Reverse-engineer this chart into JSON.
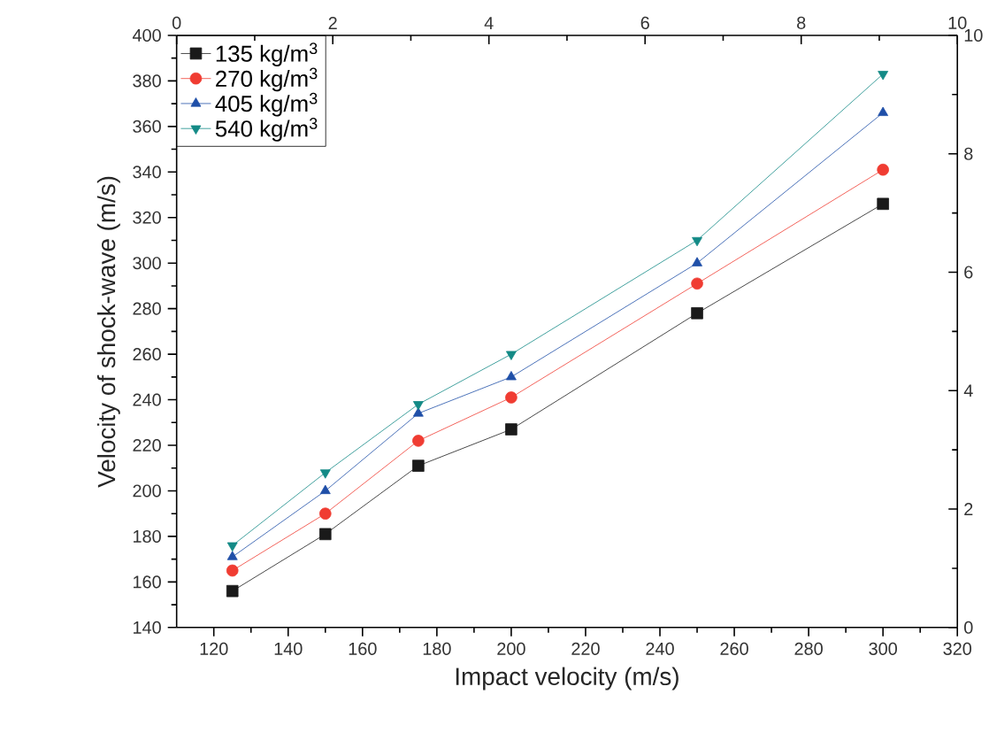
{
  "chart_data": {
    "type": "line",
    "xlabel": "Impact velocity (m/s)",
    "ylabel": "Velocity of shock-wave (m/s)",
    "x": [
      125,
      150,
      175,
      200,
      250,
      300
    ],
    "series": [
      {
        "name": "135 kg/m$^{3}$",
        "color": "#1a1a1a",
        "marker": "square",
        "values": [
          156,
          181,
          211,
          227,
          278,
          326
        ]
      },
      {
        "name": "270 kg/m$^{3}$",
        "color": "#f03c32",
        "marker": "circle",
        "values": [
          165,
          190,
          222,
          241,
          291,
          341
        ]
      },
      {
        "name": "405 kg/m$^{3}$",
        "color": "#1f4fa8",
        "marker": "triangle",
        "values": [
          171,
          200,
          234,
          250,
          300,
          366
        ]
      },
      {
        "name": "540 kg/m$^{3}$",
        "color": "#138a86",
        "marker": "triangle down",
        "values": [
          176,
          208,
          238,
          260,
          310,
          383
        ]
      }
    ],
    "xlim": [
      110,
      320
    ],
    "xticks": [
      120,
      140,
      160,
      180,
      200,
      220,
      240,
      260,
      280,
      300,
      320
    ],
    "ylim": [
      140,
      400
    ],
    "yticks": [
      140,
      160,
      180,
      200,
      220,
      240,
      260,
      280,
      300,
      320,
      340,
      360,
      380,
      400
    ],
    "x2lim": [
      0,
      10
    ],
    "x2ticks": [
      0,
      2,
      4,
      6,
      8,
      10
    ],
    "y2lim": [
      0,
      10
    ],
    "y2ticks": [
      0,
      2,
      4,
      6,
      8,
      10
    ],
    "legend": "top left",
    "grid": false,
    "line_style": "solid"
  }
}
